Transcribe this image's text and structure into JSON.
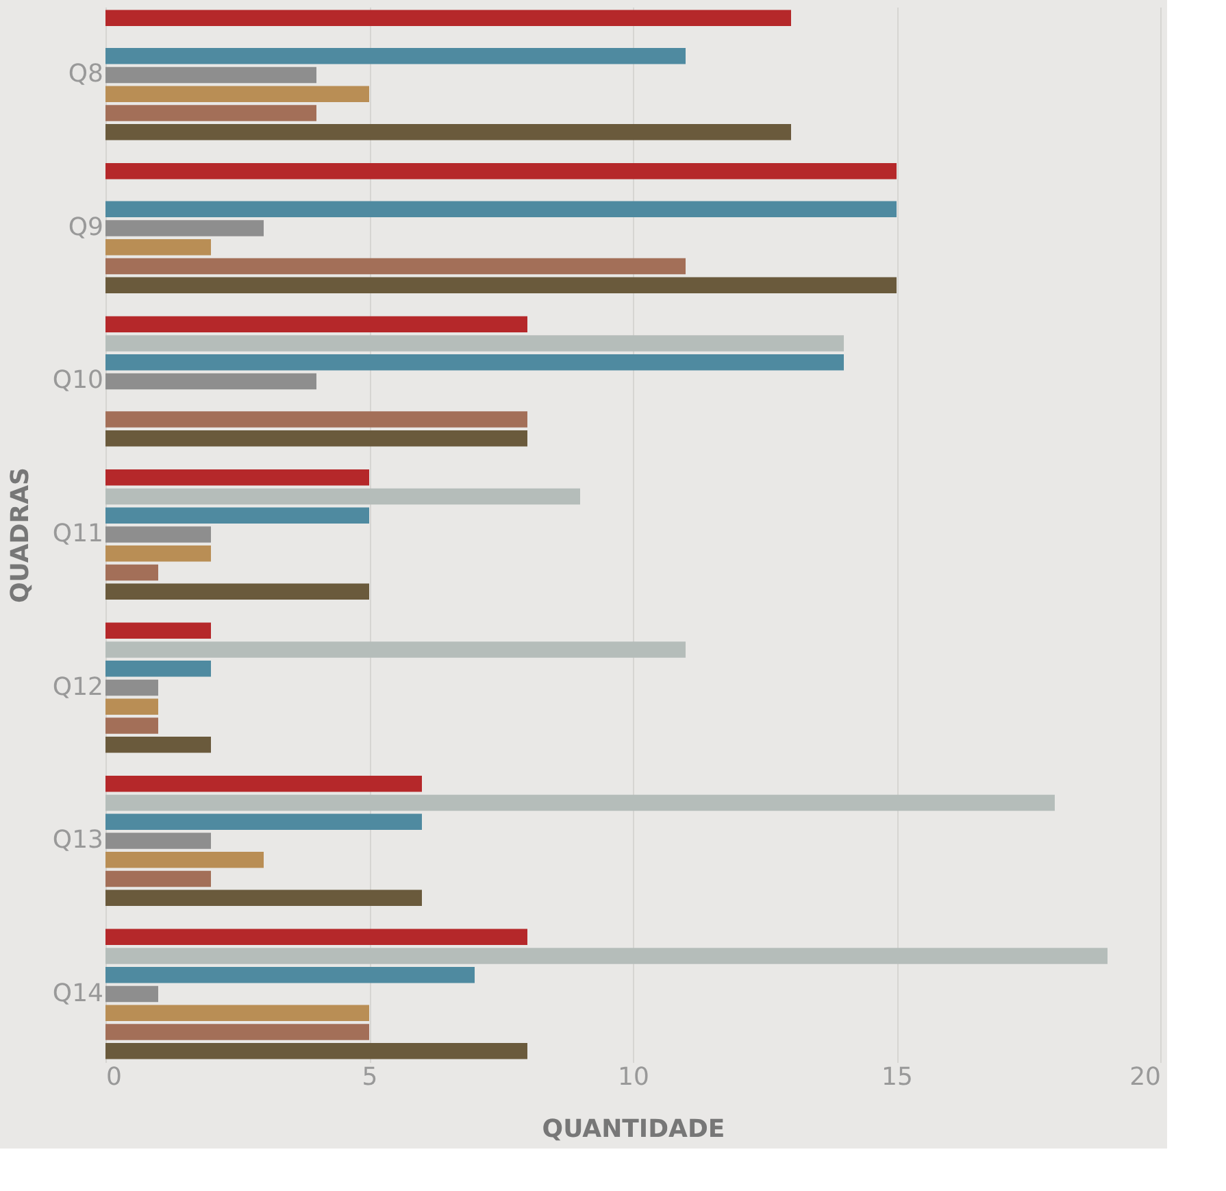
{
  "chart_data": {
    "type": "bar",
    "orientation": "horizontal",
    "xlabel": "QUANTIDADE",
    "ylabel": "QUADRAS",
    "categories": [
      "Q8",
      "Q9",
      "Q10",
      "Q11",
      "Q12",
      "Q13",
      "Q14"
    ],
    "series": [
      {
        "color": "#b5282a",
        "values": [
          13,
          15,
          8,
          5,
          2,
          6,
          8
        ]
      },
      {
        "color": "#b5bdba",
        "values": [
          null,
          null,
          14,
          9,
          11,
          18,
          19
        ]
      },
      {
        "color": "#4f8aa0",
        "values": [
          11,
          15,
          14,
          5,
          2,
          6,
          7
        ]
      },
      {
        "color": "#8e8e8e",
        "values": [
          4,
          3,
          4,
          2,
          1,
          2,
          1
        ]
      },
      {
        "color": "#b98e55",
        "values": [
          5,
          2,
          null,
          2,
          1,
          3,
          5
        ]
      },
      {
        "color": "#a36f58",
        "values": [
          4,
          11,
          8,
          1,
          1,
          2,
          5
        ]
      },
      {
        "color": "#6a5a3c",
        "values": [
          13,
          15,
          8,
          5,
          2,
          6,
          8
        ]
      }
    ],
    "xlim": [
      0,
      20
    ],
    "xticks": [
      0,
      5,
      10,
      15,
      20
    ],
    "grid": "x",
    "legend": false
  }
}
